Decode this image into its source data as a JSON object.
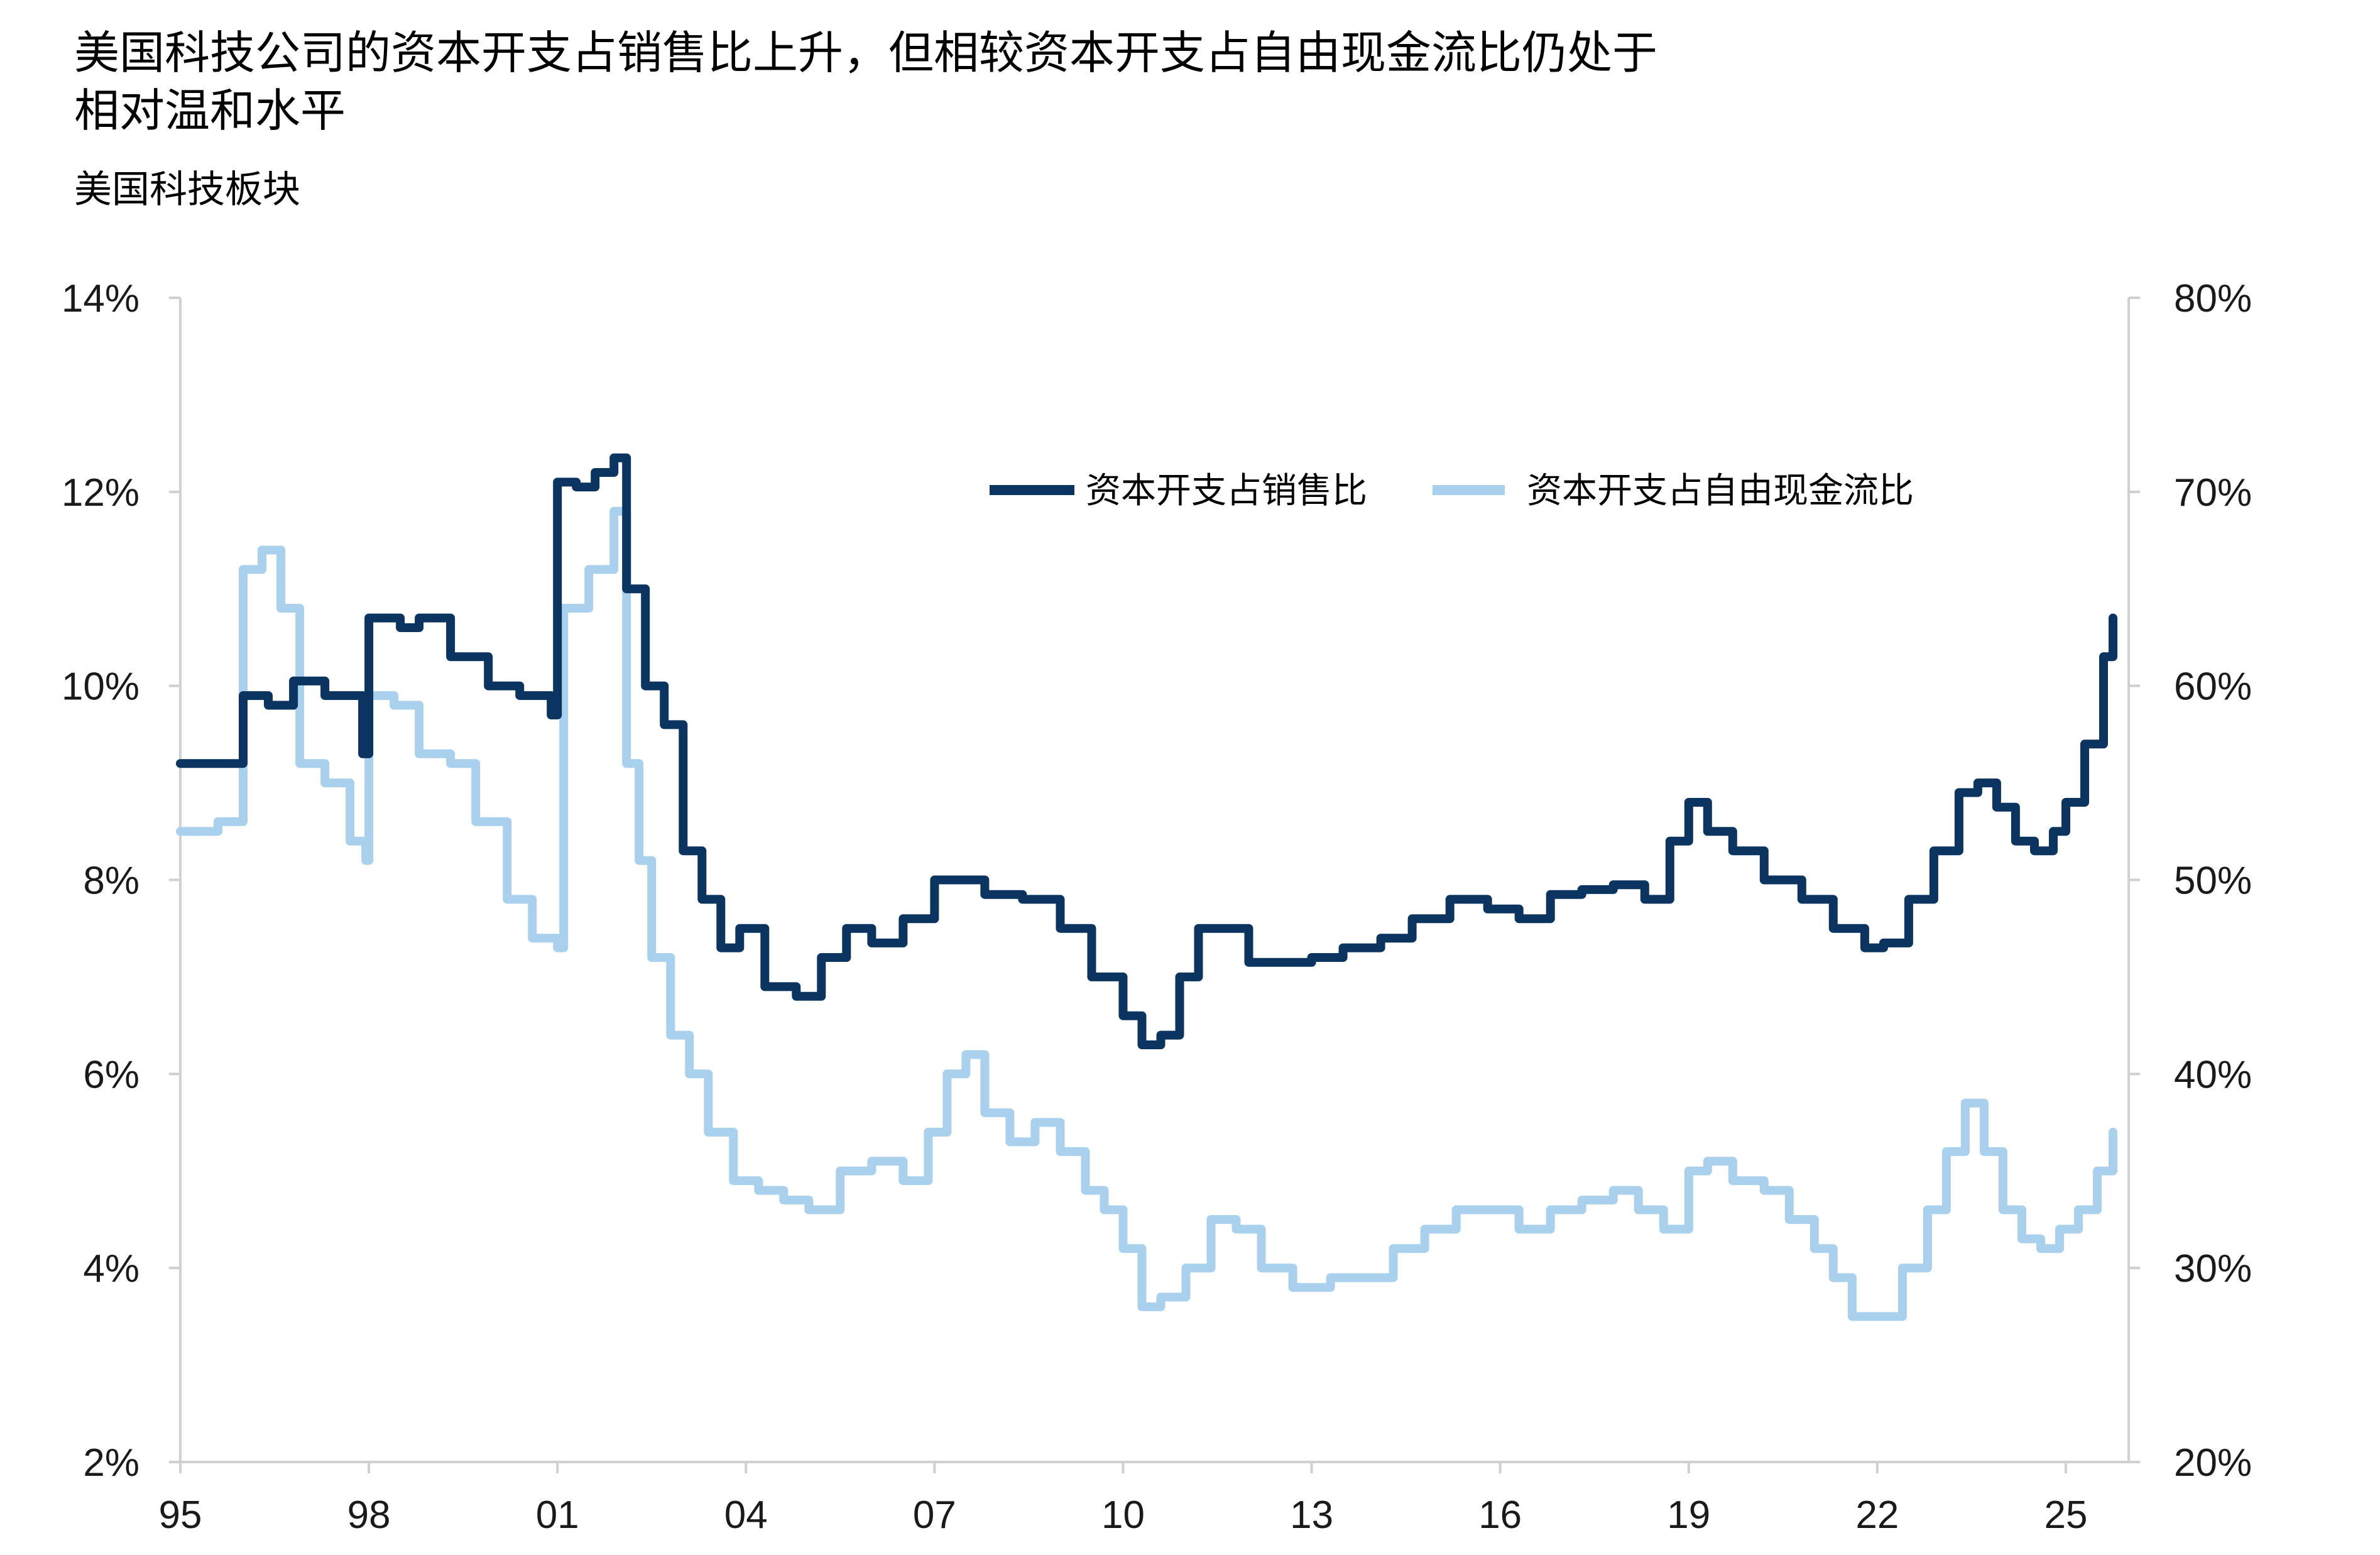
{
  "title": {
    "line1": "美国科技公司的资本开支占销售比上升，但相较资本开支占自由现金流比仍处于",
    "line2": "相对温和水平"
  },
  "subtitle": "美国科技板块",
  "chart_data": {
    "type": "line",
    "title": "美国科技公司的资本开支占销售比上升，但相较资本开支占自由现金流比仍处于相对温和水平",
    "subtitle": "美国科技板块",
    "x_range": [
      1995.0,
      2026.0
    ],
    "x_ticks": [
      {
        "value": 1995,
        "label": "95"
      },
      {
        "value": 1998,
        "label": "98"
      },
      {
        "value": 2001,
        "label": "01"
      },
      {
        "value": 2004,
        "label": "04"
      },
      {
        "value": 2007,
        "label": "07"
      },
      {
        "value": 2010,
        "label": "10"
      },
      {
        "value": 2013,
        "label": "13"
      },
      {
        "value": 2016,
        "label": "16"
      },
      {
        "value": 2019,
        "label": "19"
      },
      {
        "value": 2022,
        "label": "22"
      },
      {
        "value": 2025,
        "label": "25"
      }
    ],
    "y_left": {
      "min": 2,
      "max": 14,
      "ticks": [
        2,
        4,
        6,
        8,
        10,
        12,
        14
      ],
      "tick_labels": [
        "2%",
        "4%",
        "6%",
        "8%",
        "10%",
        "12%",
        "14%"
      ]
    },
    "y_right": {
      "min": 20,
      "max": 80,
      "ticks": [
        20,
        30,
        40,
        50,
        60,
        70,
        80
      ],
      "tick_labels": [
        "20%",
        "30%",
        "40%",
        "50%",
        "60%",
        "70%",
        "80%"
      ]
    },
    "grid": false,
    "legend_position": "top-right",
    "series": [
      {
        "name": "资本开支占销售比",
        "axis": "left",
        "color": "#0b3560",
        "x": [
          1995.0,
          1995.5,
          1996.0,
          1996.4,
          1996.8,
          1997.3,
          1997.9,
          1998.0,
          1998.5,
          1998.8,
          1999.3,
          1999.9,
          2000.4,
          2000.9,
          2001.0,
          2001.3,
          2001.6,
          2001.9,
          2002.1,
          2002.4,
          2002.7,
          2003.0,
          2003.3,
          2003.6,
          2003.9,
          2004.3,
          2004.8,
          2005.2,
          2005.6,
          2006.0,
          2006.5,
          2007.0,
          2007.4,
          2007.8,
          2008.4,
          2009.0,
          2009.5,
          2010.0,
          2010.3,
          2010.6,
          2010.9,
          2011.2,
          2011.6,
          2012.0,
          2012.5,
          2013.0,
          2013.5,
          2014.1,
          2014.6,
          2015.2,
          2015.8,
          2016.3,
          2016.8,
          2017.3,
          2017.8,
          2018.3,
          2018.7,
          2019.0,
          2019.3,
          2019.7,
          2020.2,
          2020.8,
          2021.3,
          2021.8,
          2022.1,
          2022.5,
          2022.9,
          2023.3,
          2023.6,
          2023.9,
          2024.2,
          2024.5,
          2024.8,
          2025.0,
          2025.3,
          2025.6,
          2025.75
        ],
        "y": [
          9.2,
          9.2,
          9.9,
          9.8,
          10.05,
          9.9,
          9.3,
          10.7,
          10.6,
          10.7,
          10.3,
          10.0,
          9.9,
          9.7,
          12.1,
          12.05,
          12.2,
          12.35,
          11.0,
          10.0,
          9.6,
          8.3,
          7.8,
          7.3,
          7.5,
          6.9,
          6.8,
          7.2,
          7.5,
          7.35,
          7.6,
          8.0,
          8.0,
          7.85,
          7.8,
          7.5,
          7.0,
          6.6,
          6.3,
          6.4,
          7.0,
          7.5,
          7.5,
          7.15,
          7.15,
          7.2,
          7.3,
          7.4,
          7.6,
          7.8,
          7.7,
          7.6,
          7.85,
          7.9,
          7.95,
          7.8,
          8.4,
          8.8,
          8.5,
          8.3,
          8.0,
          7.8,
          7.5,
          7.3,
          7.35,
          7.8,
          8.3,
          8.9,
          9.0,
          8.75,
          8.4,
          8.3,
          8.5,
          8.8,
          9.4,
          10.3,
          10.7
        ]
      },
      {
        "name": "资本开支占自由现金流比",
        "axis": "right",
        "color": "#a9d1ee",
        "x": [
          1995.0,
          1995.6,
          1996.0,
          1996.3,
          1996.6,
          1996.9,
          1997.3,
          1997.7,
          1997.95,
          1998.0,
          1998.4,
          1998.8,
          1999.3,
          1999.7,
          2000.2,
          2000.6,
          2001.0,
          2001.1,
          2001.5,
          2001.9,
          2002.1,
          2002.3,
          2002.5,
          2002.8,
          2003.1,
          2003.4,
          2003.8,
          2004.2,
          2004.6,
          2005.0,
          2005.5,
          2006.0,
          2006.5,
          2006.9,
          2007.2,
          2007.5,
          2007.8,
          2008.2,
          2008.6,
          2009.0,
          2009.4,
          2009.7,
          2010.0,
          2010.3,
          2010.6,
          2011.0,
          2011.4,
          2011.8,
          2012.2,
          2012.7,
          2013.3,
          2013.8,
          2014.3,
          2014.8,
          2015.3,
          2015.8,
          2016.3,
          2016.8,
          2017.3,
          2017.8,
          2018.2,
          2018.6,
          2019.0,
          2019.3,
          2019.7,
          2020.2,
          2020.6,
          2021.0,
          2021.3,
          2021.6,
          2022.0,
          2022.4,
          2022.8,
          2023.1,
          2023.4,
          2023.7,
          2024.0,
          2024.3,
          2024.6,
          2024.9,
          2025.2,
          2025.5,
          2025.75
        ],
        "y": [
          52.5,
          53.0,
          66.0,
          67.0,
          64.0,
          56.0,
          55.0,
          52.0,
          51.0,
          59.5,
          59.0,
          56.5,
          56.0,
          53.0,
          49.0,
          47.0,
          46.5,
          64.0,
          66.0,
          69.0,
          56.0,
          51.0,
          46.0,
          42.0,
          40.0,
          37.0,
          34.5,
          34.0,
          33.5,
          33.0,
          35.0,
          35.5,
          34.5,
          37.0,
          40.0,
          41.0,
          38.0,
          36.5,
          37.5,
          36.0,
          34.0,
          33.0,
          31.0,
          28.0,
          28.5,
          30.0,
          32.5,
          32.0,
          30.0,
          29.0,
          29.5,
          29.5,
          31.0,
          32.0,
          33.0,
          33.0,
          32.0,
          33.0,
          33.5,
          34.0,
          33.0,
          32.0,
          35.0,
          35.5,
          34.5,
          34.0,
          32.5,
          31.0,
          29.5,
          27.5,
          27.5,
          30.0,
          33.0,
          36.0,
          38.5,
          36.0,
          33.0,
          31.5,
          31.0,
          32.0,
          33.0,
          35.0,
          37.0
        ]
      }
    ],
    "legend": [
      "资本开支占销售比",
      "资本开支占自由现金流比"
    ]
  }
}
